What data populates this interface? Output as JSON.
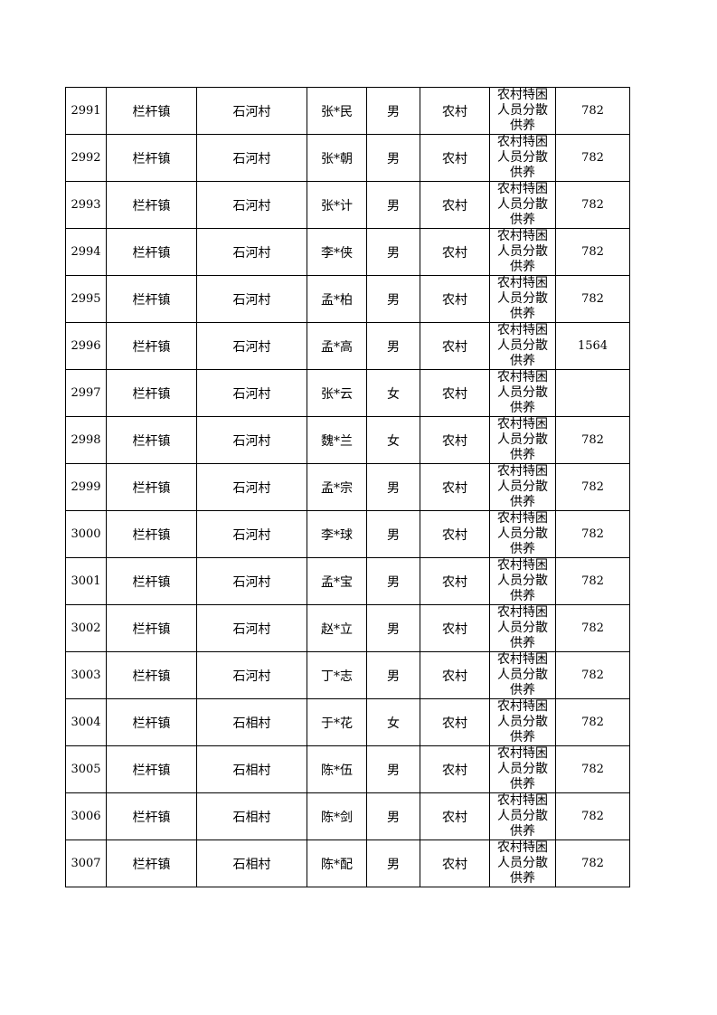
{
  "table": {
    "rows": [
      [
        2991,
        "栏杆镇",
        "石河村",
        "张*民",
        "男",
        "农村",
        "农村特困人员分散供养",
        782
      ],
      [
        2992,
        "栏杆镇",
        "石河村",
        "张*朝",
        "男",
        "农村",
        "农村特困人员分散供养",
        782
      ],
      [
        2993,
        "栏杆镇",
        "石河村",
        "张*计",
        "男",
        "农村",
        "农村特困人员分散供养",
        782
      ],
      [
        2994,
        "栏杆镇",
        "石河村",
        "李*侠",
        "男",
        "农村",
        "农村特困人员分散供养",
        782
      ],
      [
        2995,
        "栏杆镇",
        "石河村",
        "孟*柏",
        "男",
        "农村",
        "农村特困人员分散供养",
        782
      ],
      [
        2996,
        "栏杆镇",
        "石河村",
        "孟*高",
        "男",
        "农村",
        "农村特困人员分散供养",
        1564
      ],
      [
        2997,
        "栏杆镇",
        "石河村",
        "张*云",
        "女",
        "农村",
        "农村特困人员分散供养",
        null
      ],
      [
        2998,
        "栏杆镇",
        "石河村",
        "魏*兰",
        "女",
        "农村",
        "农村特困人员分散供养",
        782
      ],
      [
        2999,
        "栏杆镇",
        "石河村",
        "孟*宗",
        "男",
        "农村",
        "农村特困人员分散供养",
        782
      ],
      [
        3000,
        "栏杆镇",
        "石河村",
        "李*球",
        "男",
        "农村",
        "农村特困人员分散供养",
        782
      ],
      [
        3001,
        "栏杆镇",
        "石河村",
        "孟*宝",
        "男",
        "农村",
        "农村特困人员分散供养",
        782
      ],
      [
        3002,
        "栏杆镇",
        "石河村",
        "赵*立",
        "男",
        "农村",
        "农村特困人员分散供养",
        782
      ],
      [
        3003,
        "栏杆镇",
        "石河村",
        "丁*志",
        "男",
        "农村",
        "农村特困人员分散供养",
        782
      ],
      [
        3004,
        "栏杆镇",
        "石相村",
        "于*花",
        "女",
        "农村",
        "农村特困人员分散供养",
        782
      ],
      [
        3005,
        "栏杆镇",
        "石相村",
        "陈*伍",
        "男",
        "农村",
        "农村特困人员分散供养",
        782
      ],
      [
        3006,
        "栏杆镇",
        "石相村",
        "陈*剑",
        "男",
        "农村",
        "农村特困人员分散供养",
        782
      ],
      [
        3007,
        "栏杆镇",
        "石相村",
        "陈*配",
        "男",
        "农村",
        "农村特困人员分散供养",
        782
      ]
    ]
  }
}
